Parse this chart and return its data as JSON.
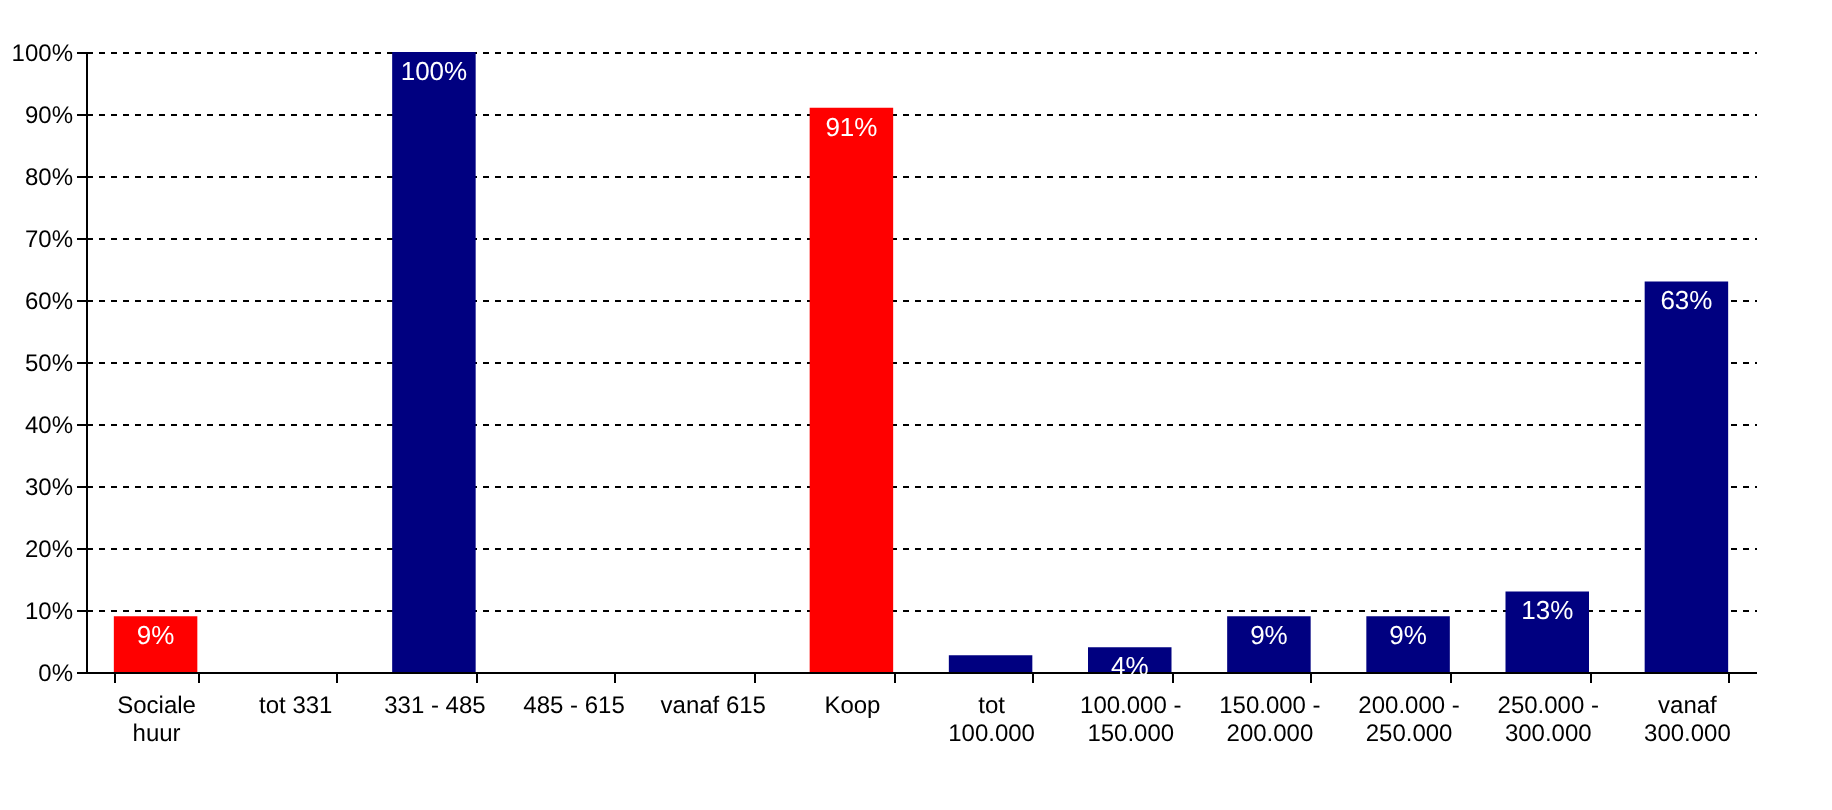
{
  "chart_data": {
    "type": "bar",
    "categories": [
      "Sociale huur",
      "tot 331",
      "331 - 485",
      "485 - 615",
      "vanaf 615",
      "Koop",
      "tot 100.000",
      "100.000 - 150.000",
      "150.000 - 200.000",
      "200.000 - 250.000",
      "250.000 - 300.000",
      "vanaf 300.000"
    ],
    "values": [
      9,
      0,
      100,
      0,
      0,
      91,
      2.7,
      4,
      9,
      9,
      13,
      63
    ],
    "colors": [
      "#ff0000",
      "#000080",
      "#000080",
      "#000080",
      "#000080",
      "#ff0000",
      "#000080",
      "#000080",
      "#000080",
      "#000080",
      "#000080",
      "#000080"
    ],
    "value_labels": [
      "9%",
      null,
      "100%",
      null,
      null,
      "91%",
      null,
      "4%",
      "9%",
      "9%",
      "13%",
      "63%"
    ],
    "ylim": [
      0,
      100
    ],
    "yticks": [
      {
        "value": 0,
        "label": "0%"
      },
      {
        "value": 10,
        "label": "10%"
      },
      {
        "value": 20,
        "label": "20%"
      },
      {
        "value": 30,
        "label": "30%"
      },
      {
        "value": 40,
        "label": "40%"
      },
      {
        "value": 50,
        "label": "50%"
      },
      {
        "value": 60,
        "label": "60%"
      },
      {
        "value": 70,
        "label": "70%"
      },
      {
        "value": 80,
        "label": "80%"
      },
      {
        "value": 90,
        "label": "90%"
      },
      {
        "value": 100,
        "label": "100%"
      }
    ],
    "grid": "y"
  }
}
